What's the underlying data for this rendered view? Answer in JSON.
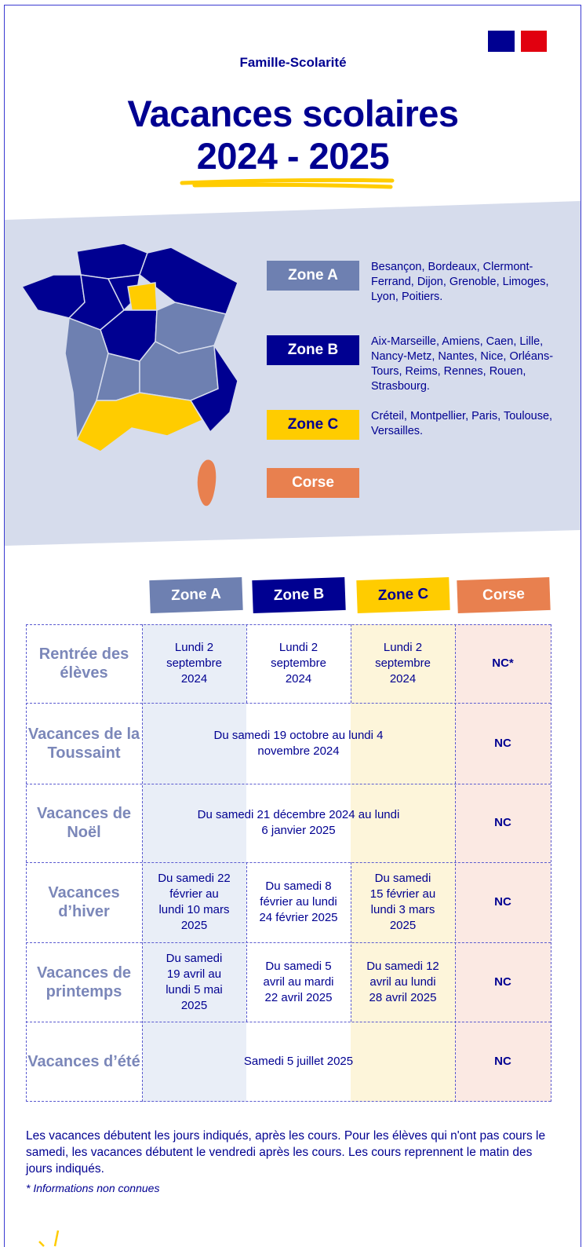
{
  "header": {
    "kicker": "Famille-Scolarité",
    "title_line1": "Vacances scolaires",
    "title_line2": "2024 - 2025"
  },
  "colors": {
    "navy": "#000091",
    "zone_a": "#6e80b1",
    "zone_b": "#000091",
    "zone_c": "#ffcc00",
    "corse": "#e8804f",
    "band": "#d6dcec"
  },
  "legend": [
    {
      "label": "Zone A",
      "academies": "Besançon, Bordeaux, Clermont-Ferrand, Dijon, Grenoble, Limoges, Lyon, Poitiers."
    },
    {
      "label": "Zone B",
      "academies": "Aix-Marseille, Amiens, Caen, Lille, Nancy-Metz, Nantes, Nice, Orléans-Tours, Reims, Rennes, Rouen, Strasbourg."
    },
    {
      "label": "Zone C",
      "academies": "Créteil, Montpellier, Paris, Toulouse, Versailles."
    },
    {
      "label": "Corse",
      "academies": ""
    }
  ],
  "table": {
    "columns": [
      "Zone A",
      "Zone B",
      "Zone C",
      "Corse"
    ],
    "rows": [
      {
        "label": "Rentrée des élèves",
        "a": "Lundi 2 septembre 2024",
        "b": "Lundi 2 septembre 2024",
        "c": "Lundi 2 septembre 2024",
        "corse": "NC*"
      },
      {
        "label": "Vacances de la Toussaint",
        "all": "Du samedi 19 octobre au lundi 4 novembre 2024",
        "corse": "NC"
      },
      {
        "label": "Vacances de Noël",
        "all": "Du samedi 21 décembre 2024 au lundi 6 janvier 2025",
        "corse": "NC"
      },
      {
        "label": "Vacances d’hiver",
        "a": "Du samedi 22 février au lundi 10 mars 2025",
        "b": "Du samedi 8 février au lundi 24 février 2025",
        "c": "Du samedi 15 février au lundi 3 mars 2025",
        "corse": "NC"
      },
      {
        "label": "Vacances de printemps",
        "a": "Du samedi 19 avril au lundi 5 mai 2025",
        "b": "Du samedi 5 avril au mardi 22 avril 2025",
        "c": "Du samedi 12 avril au lundi 28 avril 2025",
        "corse": "NC"
      },
      {
        "label": "Vacances d’été",
        "all": "Samedi 5 juillet 2025",
        "corse": "NC"
      }
    ]
  },
  "notes": {
    "text": "Les vacances débutent les jours indiqués, après les cours. Pour les élèves qui n'ont pas cours le samedi, les vacances débutent le vendredi après les cours. Les cours reprennent le matin des jours indiqués.",
    "footnote": "* Informations non connues"
  }
}
